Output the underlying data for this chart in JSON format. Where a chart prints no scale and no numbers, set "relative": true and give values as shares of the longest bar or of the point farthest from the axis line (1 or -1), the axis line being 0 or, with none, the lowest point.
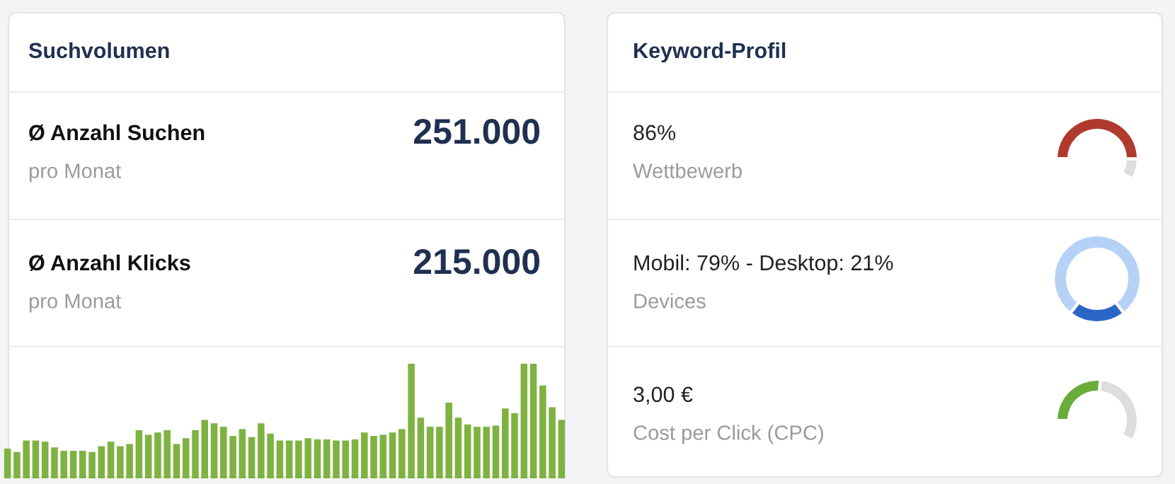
{
  "chart_data": [
    {
      "type": "other",
      "title": "Suchvolumen",
      "annotations": [
        "Ø Anzahl Suchen",
        "pro Monat",
        "251.000",
        "Ø Anzahl Klicks",
        "pro Monat",
        "215.000"
      ]
    },
    {
      "type": "bar",
      "relative": true,
      "color": "#7fb241",
      "categories": [
        null,
        null,
        null,
        null,
        null,
        null,
        null,
        null,
        null,
        null,
        null,
        null,
        null,
        null,
        null,
        null,
        null,
        null,
        null,
        null,
        null,
        null,
        null,
        null,
        null,
        null,
        null,
        null,
        null,
        null,
        null,
        null,
        null,
        null,
        null,
        null,
        null,
        null,
        null,
        null,
        null,
        null,
        null,
        null,
        null,
        null,
        null,
        null,
        null,
        null,
        null,
        null,
        null,
        null,
        null,
        null,
        null,
        null,
        null,
        null
      ],
      "values": [
        0.26,
        0.23,
        0.33,
        0.33,
        0.32,
        0.27,
        0.24,
        0.24,
        0.24,
        0.23,
        0.28,
        0.32,
        0.28,
        0.3,
        0.42,
        0.38,
        0.4,
        0.42,
        0.3,
        0.35,
        0.42,
        0.51,
        0.48,
        0.45,
        0.37,
        0.43,
        0.36,
        0.48,
        0.39,
        0.33,
        0.33,
        0.33,
        0.35,
        0.34,
        0.34,
        0.33,
        0.33,
        0.34,
        0.4,
        0.37,
        0.38,
        0.4,
        0.43,
        1,
        0.53,
        0.45,
        0.45,
        0.66,
        0.53,
        0.47,
        0.45,
        0.45,
        0.46,
        0.61,
        0.57,
        1,
        1,
        0.81,
        0.62,
        0.51
      ]
    },
    {
      "type": "other",
      "title": "Keyword-Profil",
      "annotations": [
        "86%",
        "Wettbewerb",
        "Mobil: 79% - Desktop: 21%",
        "Devices",
        "3,00 €",
        "Cost per Click (CPC)"
      ]
    },
    {
      "type": "donut",
      "categories": [
        null,
        null
      ],
      "values": [
        86,
        14
      ],
      "colors": [
        "#b03a2e",
        "#dddddd"
      ]
    },
    {
      "type": "donut",
      "categories": [
        null,
        null
      ],
      "values": [
        79,
        21
      ],
      "colors": [
        "#b5d2f6",
        "#2b66c6"
      ]
    },
    {
      "type": "donut",
      "categories": [
        null,
        null
      ],
      "values": [
        45,
        55
      ],
      "colors": [
        "#6aab3a",
        "#dddddd"
      ]
    }
  ]
}
